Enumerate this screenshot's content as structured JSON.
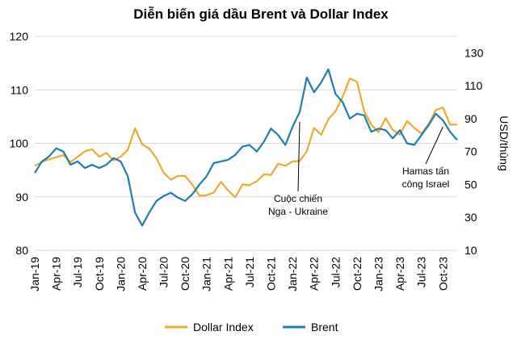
{
  "chart_data": {
    "type": "line",
    "title": "Diễn biến giá dầu Brent và Dollar Index",
    "ylabel": "",
    "y2label": "USD/thùng",
    "ylim": [
      80,
      120
    ],
    "y_ticks": [
      80,
      90,
      100,
      110,
      120
    ],
    "y2lim": [
      10,
      140
    ],
    "y2_ticks": [
      10,
      30,
      50,
      70,
      90,
      110,
      130
    ],
    "grid": "horizontal",
    "legend_position": "bottom",
    "x_start": "2019-01",
    "x_end": "2023-12",
    "x_ticks": [
      "Jan-19",
      "Apr-19",
      "Jul-19",
      "Oct-19",
      "Jan-20",
      "Apr-20",
      "Jul-20",
      "Oct-20",
      "Jan-21",
      "Apr-21",
      "Jul-21",
      "Oct-21",
      "Jan-22",
      "Apr-22",
      "Jul-22",
      "Oct-22",
      "Jan-23",
      "Apr-23",
      "Jul-23",
      "Oct-23"
    ],
    "colors": {
      "Dollar Index": "#F0A830",
      "Brent": "#1A7FB0"
    },
    "series": [
      {
        "name": "Dollar Index",
        "axis": "left",
        "x": [
          "2019-01",
          "2019-02",
          "2019-03",
          "2019-04",
          "2019-05",
          "2019-06",
          "2019-07",
          "2019-08",
          "2019-09",
          "2019-10",
          "2019-11",
          "2019-12",
          "2020-01",
          "2020-02",
          "2020-03",
          "2020-04",
          "2020-05",
          "2020-06",
          "2020-07",
          "2020-08",
          "2020-09",
          "2020-10",
          "2020-11",
          "2020-12",
          "2021-01",
          "2021-02",
          "2021-03",
          "2021-04",
          "2021-05",
          "2021-06",
          "2021-07",
          "2021-08",
          "2021-09",
          "2021-10",
          "2021-11",
          "2021-12",
          "2022-01",
          "2022-02",
          "2022-03",
          "2022-04",
          "2022-05",
          "2022-06",
          "2022-07",
          "2022-08",
          "2022-09",
          "2022-10",
          "2022-11",
          "2022-12",
          "2023-01",
          "2023-02",
          "2023-03",
          "2023-04",
          "2023-05",
          "2023-06",
          "2023-07",
          "2023-08",
          "2023-09",
          "2023-10",
          "2023-11",
          "2023-12"
        ],
        "values": [
          95.8,
          96.5,
          97.0,
          97.4,
          97.8,
          96.5,
          97.5,
          98.5,
          98.9,
          97.5,
          98.2,
          96.8,
          97.5,
          98.8,
          102.8,
          99.8,
          99.0,
          97.2,
          94.5,
          93.2,
          93.9,
          93.9,
          92.3,
          90.2,
          90.3,
          90.8,
          92.8,
          91.2,
          89.9,
          92.3,
          92.2,
          92.9,
          94.2,
          94.1,
          96.2,
          95.8,
          96.6,
          96.7,
          98.5,
          102.9,
          101.6,
          104.5,
          106.0,
          108.7,
          112.1,
          111.5,
          106.0,
          103.5,
          102.1,
          104.7,
          102.5,
          101.6,
          104.2,
          102.9,
          101.8,
          103.6,
          106.2,
          106.7,
          103.5,
          103.5
        ]
      },
      {
        "name": "Brent",
        "axis": "right",
        "x": [
          "2019-01",
          "2019-02",
          "2019-03",
          "2019-04",
          "2019-05",
          "2019-06",
          "2019-07",
          "2019-08",
          "2019-09",
          "2019-10",
          "2019-11",
          "2019-12",
          "2020-01",
          "2020-02",
          "2020-03",
          "2020-04",
          "2020-05",
          "2020-06",
          "2020-07",
          "2020-08",
          "2020-09",
          "2020-10",
          "2020-11",
          "2020-12",
          "2021-01",
          "2021-02",
          "2021-03",
          "2021-04",
          "2021-05",
          "2021-06",
          "2021-07",
          "2021-08",
          "2021-09",
          "2021-10",
          "2021-11",
          "2021-12",
          "2022-01",
          "2022-02",
          "2022-03",
          "2022-04",
          "2022-05",
          "2022-06",
          "2022-07",
          "2022-08",
          "2022-09",
          "2022-10",
          "2022-11",
          "2022-12",
          "2023-01",
          "2023-02",
          "2023-03",
          "2023-04",
          "2023-05",
          "2023-06",
          "2023-07",
          "2023-08",
          "2023-09",
          "2023-10",
          "2023-11",
          "2023-12"
        ],
        "values": [
          57,
          64,
          67,
          72,
          70,
          62,
          64,
          60,
          62,
          60,
          62,
          66,
          64,
          55,
          33,
          25,
          33,
          40,
          43,
          45,
          42,
          40,
          44,
          50,
          55,
          63,
          64,
          65,
          68,
          73,
          74,
          70,
          76,
          84,
          80,
          74,
          85,
          94,
          115,
          106,
          112,
          120,
          105,
          100,
          90,
          93,
          92,
          82,
          84,
          83,
          78,
          83,
          75,
          74,
          80,
          86,
          93,
          89,
          82,
          77
        ]
      }
    ],
    "annotations": [
      {
        "lines": [
          "Cuộc chiến",
          "Nga - Ukraine"
        ],
        "x": "2022-02",
        "y2": 88
      },
      {
        "lines": [
          "Hamas tấn",
          "công Israel"
        ],
        "x": "2023-10",
        "y2": 85
      }
    ]
  }
}
